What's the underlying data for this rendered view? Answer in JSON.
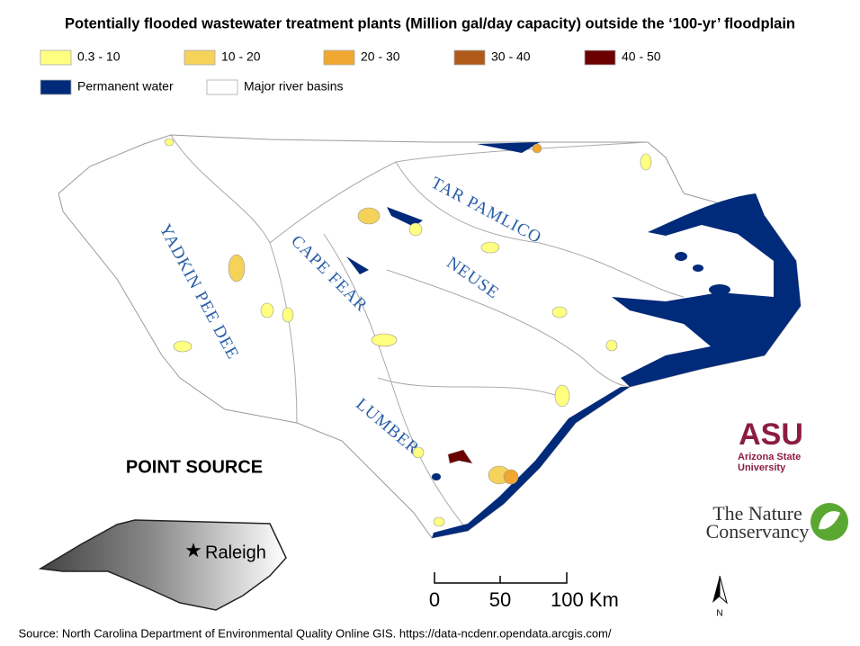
{
  "title": "Potentially flooded wastewater treatment plants (Million gal/day capacity) outside the ‘100-yr’ floodplain",
  "legend": {
    "items": [
      {
        "label": "0.3 - 10",
        "color": "#ffff80"
      },
      {
        "label": "10 - 20",
        "color": "#f5d25a"
      },
      {
        "label": "20 - 30",
        "color": "#f0a830"
      },
      {
        "label": "30 - 40",
        "color": "#b05a1a"
      },
      {
        "label": "40 - 50",
        "color": "#6b0000"
      },
      {
        "label": "Permanent water",
        "color": "#002a7a"
      },
      {
        "label": "Major river basins",
        "color": "#ffffff"
      }
    ]
  },
  "basins": [
    "YADKIN PEE DEE",
    "CAPE FEAR",
    "TAR PAMLICO",
    "NEUSE",
    "LUMBER"
  ],
  "heading": "POINT SOURCE",
  "inset": {
    "city": "Raleigh"
  },
  "scale_bar": [
    "0",
    "50",
    "100 Km"
  ],
  "north_arrow": "N",
  "logos": {
    "asu": "ASU",
    "asu_name": "Arizona State University",
    "tnc_top": "The Nature",
    "tnc_bottom": "Conservancy"
  },
  "source": "Source: North Carolina Department of Environmental Quality Online GIS. https://data-ncdenr.opendata.arcgis.com/"
}
